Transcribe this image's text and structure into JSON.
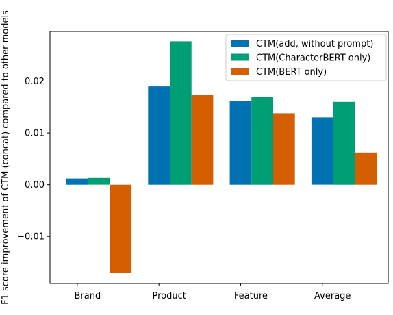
{
  "chart_data": {
    "type": "bar",
    "categories": [
      "Brand",
      "Product",
      "Feature",
      "Average"
    ],
    "series": [
      {
        "name": "CTM(add, without prompt)",
        "color": "#0072b2",
        "values": [
          0.0012,
          0.019,
          0.0162,
          0.013
        ]
      },
      {
        "name": "CTM(CharacterBERT only)",
        "color": "#009e73",
        "values": [
          0.0013,
          0.0277,
          0.017,
          0.016
        ]
      },
      {
        "name": "CTM(BERT only)",
        "color": "#d55e00",
        "values": [
          -0.017,
          0.0174,
          0.0138,
          0.0062
        ]
      }
    ],
    "ylabel": "F1 score improvement of CTM (concat) compared to other models",
    "xlabel": "",
    "title": "",
    "ylim": [
      -0.0191,
      0.0296
    ],
    "yticks": [
      -0.01,
      0.0,
      0.01,
      0.02
    ],
    "ytick_labels": [
      "−0.01",
      "0.00",
      "0.01",
      "0.02"
    ],
    "legend_position": "top-right",
    "grid": false
  }
}
